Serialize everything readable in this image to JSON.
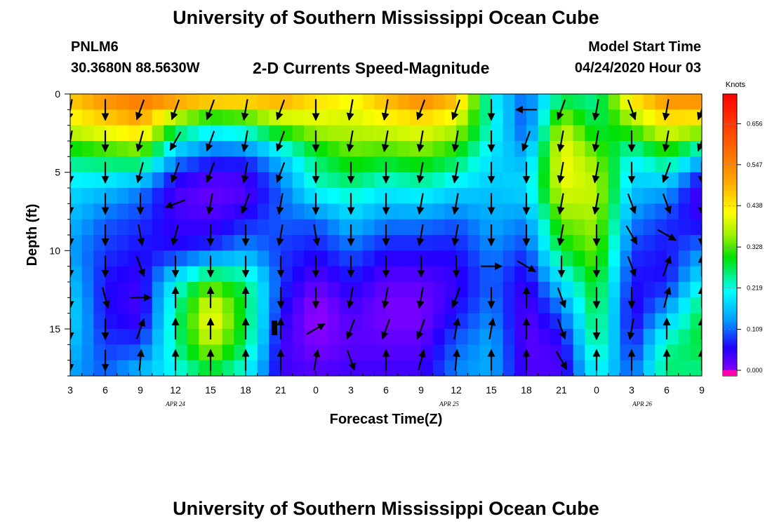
{
  "page": {
    "title_top": "University of Southern Mississippi Ocean Cube",
    "title_bottom": "University of Southern Mississippi Ocean Cube",
    "station_id": "PNLM6",
    "station_coords": "30.3680N 88.5630W",
    "subtitle": "2-D Currents Speed-Magnitude",
    "model_start_label": "Model Start Time",
    "model_start_value": "04/24/2020 Hour 03"
  },
  "chart_data": {
    "type": "heatmap",
    "title": "2-D Currents Speed-Magnitude",
    "xlabel": "Forecast Time(Z)",
    "ylabel": "Depth (ft)",
    "x_ticks": [
      "3",
      "6",
      "9",
      "12",
      "15",
      "18",
      "21",
      "0",
      "3",
      "6",
      "9",
      "12",
      "15",
      "18",
      "21",
      "0",
      "3",
      "6",
      "9"
    ],
    "date_labels": [
      {
        "label": "APR  24",
        "at_step": 3
      },
      {
        "label": "APR  25",
        "at_step": 10.8
      },
      {
        "label": "APR  26",
        "at_step": 16.3
      }
    ],
    "y_ticks": [
      0,
      5,
      10,
      15
    ],
    "ylim": [
      0,
      18
    ],
    "colorbar": {
      "unit": "Knots",
      "ticks": [
        "0.000",
        "0.109",
        "0.219",
        "0.328",
        "0.438",
        "0.547",
        "0.656"
      ],
      "range": [
        0,
        0.75
      ],
      "marker_color": "#ff00aa"
    },
    "grid_hours_step": 1,
    "hours_total": 54,
    "profile_columns": {
      "times_hours": [
        0,
        3,
        6,
        9,
        12,
        15,
        18,
        21,
        24,
        27,
        30,
        33,
        36,
        39,
        42,
        45,
        48,
        51,
        54
      ],
      "depth_knots_ft": [
        0,
        2,
        4,
        6,
        8,
        10,
        12,
        14,
        16,
        18
      ],
      "speeds": [
        [
          0.5,
          0.42,
          0.28,
          0.2,
          0.17,
          0.15,
          0.18,
          0.2,
          0.18,
          0.15
        ],
        [
          0.56,
          0.46,
          0.3,
          0.18,
          0.12,
          0.1,
          0.08,
          0.08,
          0.1,
          0.12
        ],
        [
          0.6,
          0.5,
          0.32,
          0.14,
          0.1,
          0.08,
          0.06,
          0.05,
          0.1,
          0.18
        ],
        [
          0.58,
          0.32,
          0.15,
          0.05,
          0.06,
          0.08,
          0.22,
          0.26,
          0.26,
          0.22
        ],
        [
          0.56,
          0.25,
          0.1,
          0.03,
          0.05,
          0.1,
          0.33,
          0.45,
          0.4,
          0.28
        ],
        [
          0.54,
          0.28,
          0.1,
          0.04,
          0.08,
          0.15,
          0.28,
          0.3,
          0.28,
          0.22
        ],
        [
          0.55,
          0.36,
          0.18,
          0.12,
          0.12,
          0.1,
          0.1,
          0.08,
          0.06,
          0.06
        ],
        [
          0.48,
          0.4,
          0.28,
          0.24,
          0.12,
          0.08,
          0.04,
          0.0,
          0.02,
          0.05
        ],
        [
          0.44,
          0.4,
          0.34,
          0.26,
          0.18,
          0.12,
          0.08,
          0.05,
          0.04,
          0.06
        ],
        [
          0.52,
          0.42,
          0.32,
          0.22,
          0.14,
          0.08,
          0.04,
          0.02,
          0.04,
          0.06
        ],
        [
          0.58,
          0.44,
          0.34,
          0.24,
          0.14,
          0.08,
          0.04,
          0.02,
          0.04,
          0.06
        ],
        [
          0.52,
          0.4,
          0.3,
          0.2,
          0.12,
          0.08,
          0.06,
          0.08,
          0.12,
          0.14
        ],
        [
          0.22,
          0.24,
          0.2,
          0.18,
          0.16,
          0.14,
          0.12,
          0.14,
          0.16,
          0.16
        ],
        [
          0.12,
          0.1,
          0.16,
          0.2,
          0.14,
          0.1,
          0.06,
          0.04,
          0.04,
          0.05
        ],
        [
          0.26,
          0.4,
          0.44,
          0.42,
          0.36,
          0.3,
          0.2,
          0.12,
          0.06,
          0.05
        ],
        [
          0.26,
          0.28,
          0.36,
          0.4,
          0.38,
          0.36,
          0.32,
          0.3,
          0.28,
          0.22
        ],
        [
          0.48,
          0.36,
          0.22,
          0.18,
          0.14,
          0.1,
          0.08,
          0.06,
          0.08,
          0.12
        ],
        [
          0.56,
          0.44,
          0.3,
          0.16,
          0.1,
          0.08,
          0.08,
          0.16,
          0.26,
          0.28
        ],
        [
          0.58,
          0.42,
          0.18,
          0.04,
          0.06,
          0.14,
          0.22,
          0.3,
          0.3,
          0.26
        ]
      ]
    },
    "current_vectors": {
      "times_hours": [
        0,
        3,
        6,
        9,
        12,
        15,
        18,
        21,
        24,
        27,
        30,
        33,
        36,
        39,
        42,
        45,
        48,
        51,
        54
      ],
      "depths_ft": [
        0,
        2,
        4,
        6,
        8,
        10,
        12,
        14,
        16,
        18
      ],
      "directions_deg": [
        [
          190,
          190,
          180,
          180,
          180,
          180,
          180,
          180,
          180,
          180
        ],
        [
          180,
          180,
          180,
          180,
          180,
          180,
          165,
          180,
          180,
          180
        ],
        [
          200,
          195,
          195,
          180,
          170,
          160,
          90,
          20,
          5,
          0
        ],
        [
          200,
          210,
          200,
          250,
          195,
          180,
          0,
          0,
          0,
          0
        ],
        [
          200,
          200,
          200,
          190,
          180,
          180,
          0,
          0,
          0,
          0
        ],
        [
          190,
          190,
          190,
          200,
          180,
          180,
          0,
          0,
          0,
          0
        ],
        [
          200,
          200,
          200,
          190,
          190,
          180,
          180,
          0,
          0,
          0
        ],
        [
          180,
          180,
          180,
          180,
          170,
          180,
          180,
          60,
          10,
          0
        ],
        [
          190,
          190,
          180,
          180,
          180,
          180,
          190,
          200,
          160,
          0
        ],
        [
          190,
          190,
          180,
          180,
          180,
          180,
          190,
          200,
          0,
          0
        ],
        [
          200,
          190,
          190,
          190,
          190,
          180,
          190,
          200,
          15,
          5
        ],
        [
          200,
          190,
          190,
          190,
          190,
          180,
          200,
          10,
          5,
          0
        ],
        [
          180,
          180,
          180,
          180,
          180,
          90,
          180,
          10,
          0,
          0
        ],
        [
          270,
          200,
          180,
          180,
          180,
          120,
          0,
          0,
          0,
          0
        ],
        [
          200,
          190,
          190,
          190,
          190,
          180,
          160,
          160,
          150,
          0
        ],
        [
          190,
          190,
          190,
          190,
          180,
          180,
          180,
          180,
          0,
          0
        ],
        [
          160,
          180,
          180,
          160,
          150,
          160,
          180,
          190,
          0,
          0
        ],
        [
          190,
          190,
          200,
          160,
          120,
          20,
          15,
          0,
          0,
          0
        ],
        [
          200,
          200,
          180,
          180,
          180,
          0,
          0,
          0,
          0,
          0
        ]
      ]
    }
  }
}
